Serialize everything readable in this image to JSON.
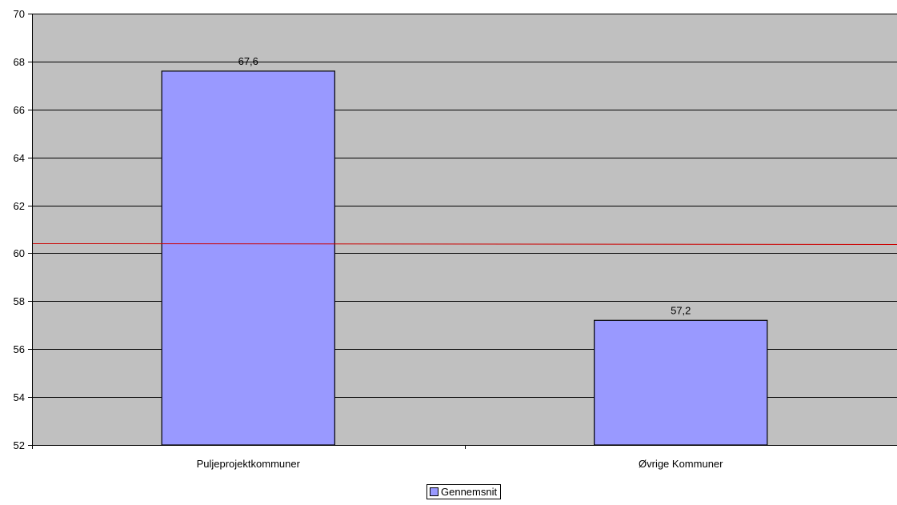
{
  "chart_data": {
    "type": "bar",
    "title": "",
    "xlabel": "",
    "ylabel": "",
    "categories": [
      "Puljeprojektkommuner",
      "Øvrige Kommuner"
    ],
    "series": [
      {
        "name": "Gennemsnit",
        "values": [
          67.6,
          57.2
        ]
      }
    ],
    "data_labels": [
      "67,6",
      "57,2"
    ],
    "ylim": [
      52,
      70
    ],
    "y_ticks": [
      52,
      54,
      56,
      58,
      60,
      62,
      64,
      66,
      68,
      70
    ],
    "y_tick_labels": [
      "52",
      "54",
      "56",
      "58",
      "60",
      "62",
      "64",
      "66",
      "68",
      "70"
    ],
    "reference_line": {
      "value": 60.4,
      "color": "#cc0000"
    },
    "grid": true,
    "legend_position": "bottom",
    "colors": {
      "bar": "#9999ff",
      "plot_background": "#c0c0c0",
      "gridline": "#000000",
      "reference_line": "#cc0000"
    }
  }
}
